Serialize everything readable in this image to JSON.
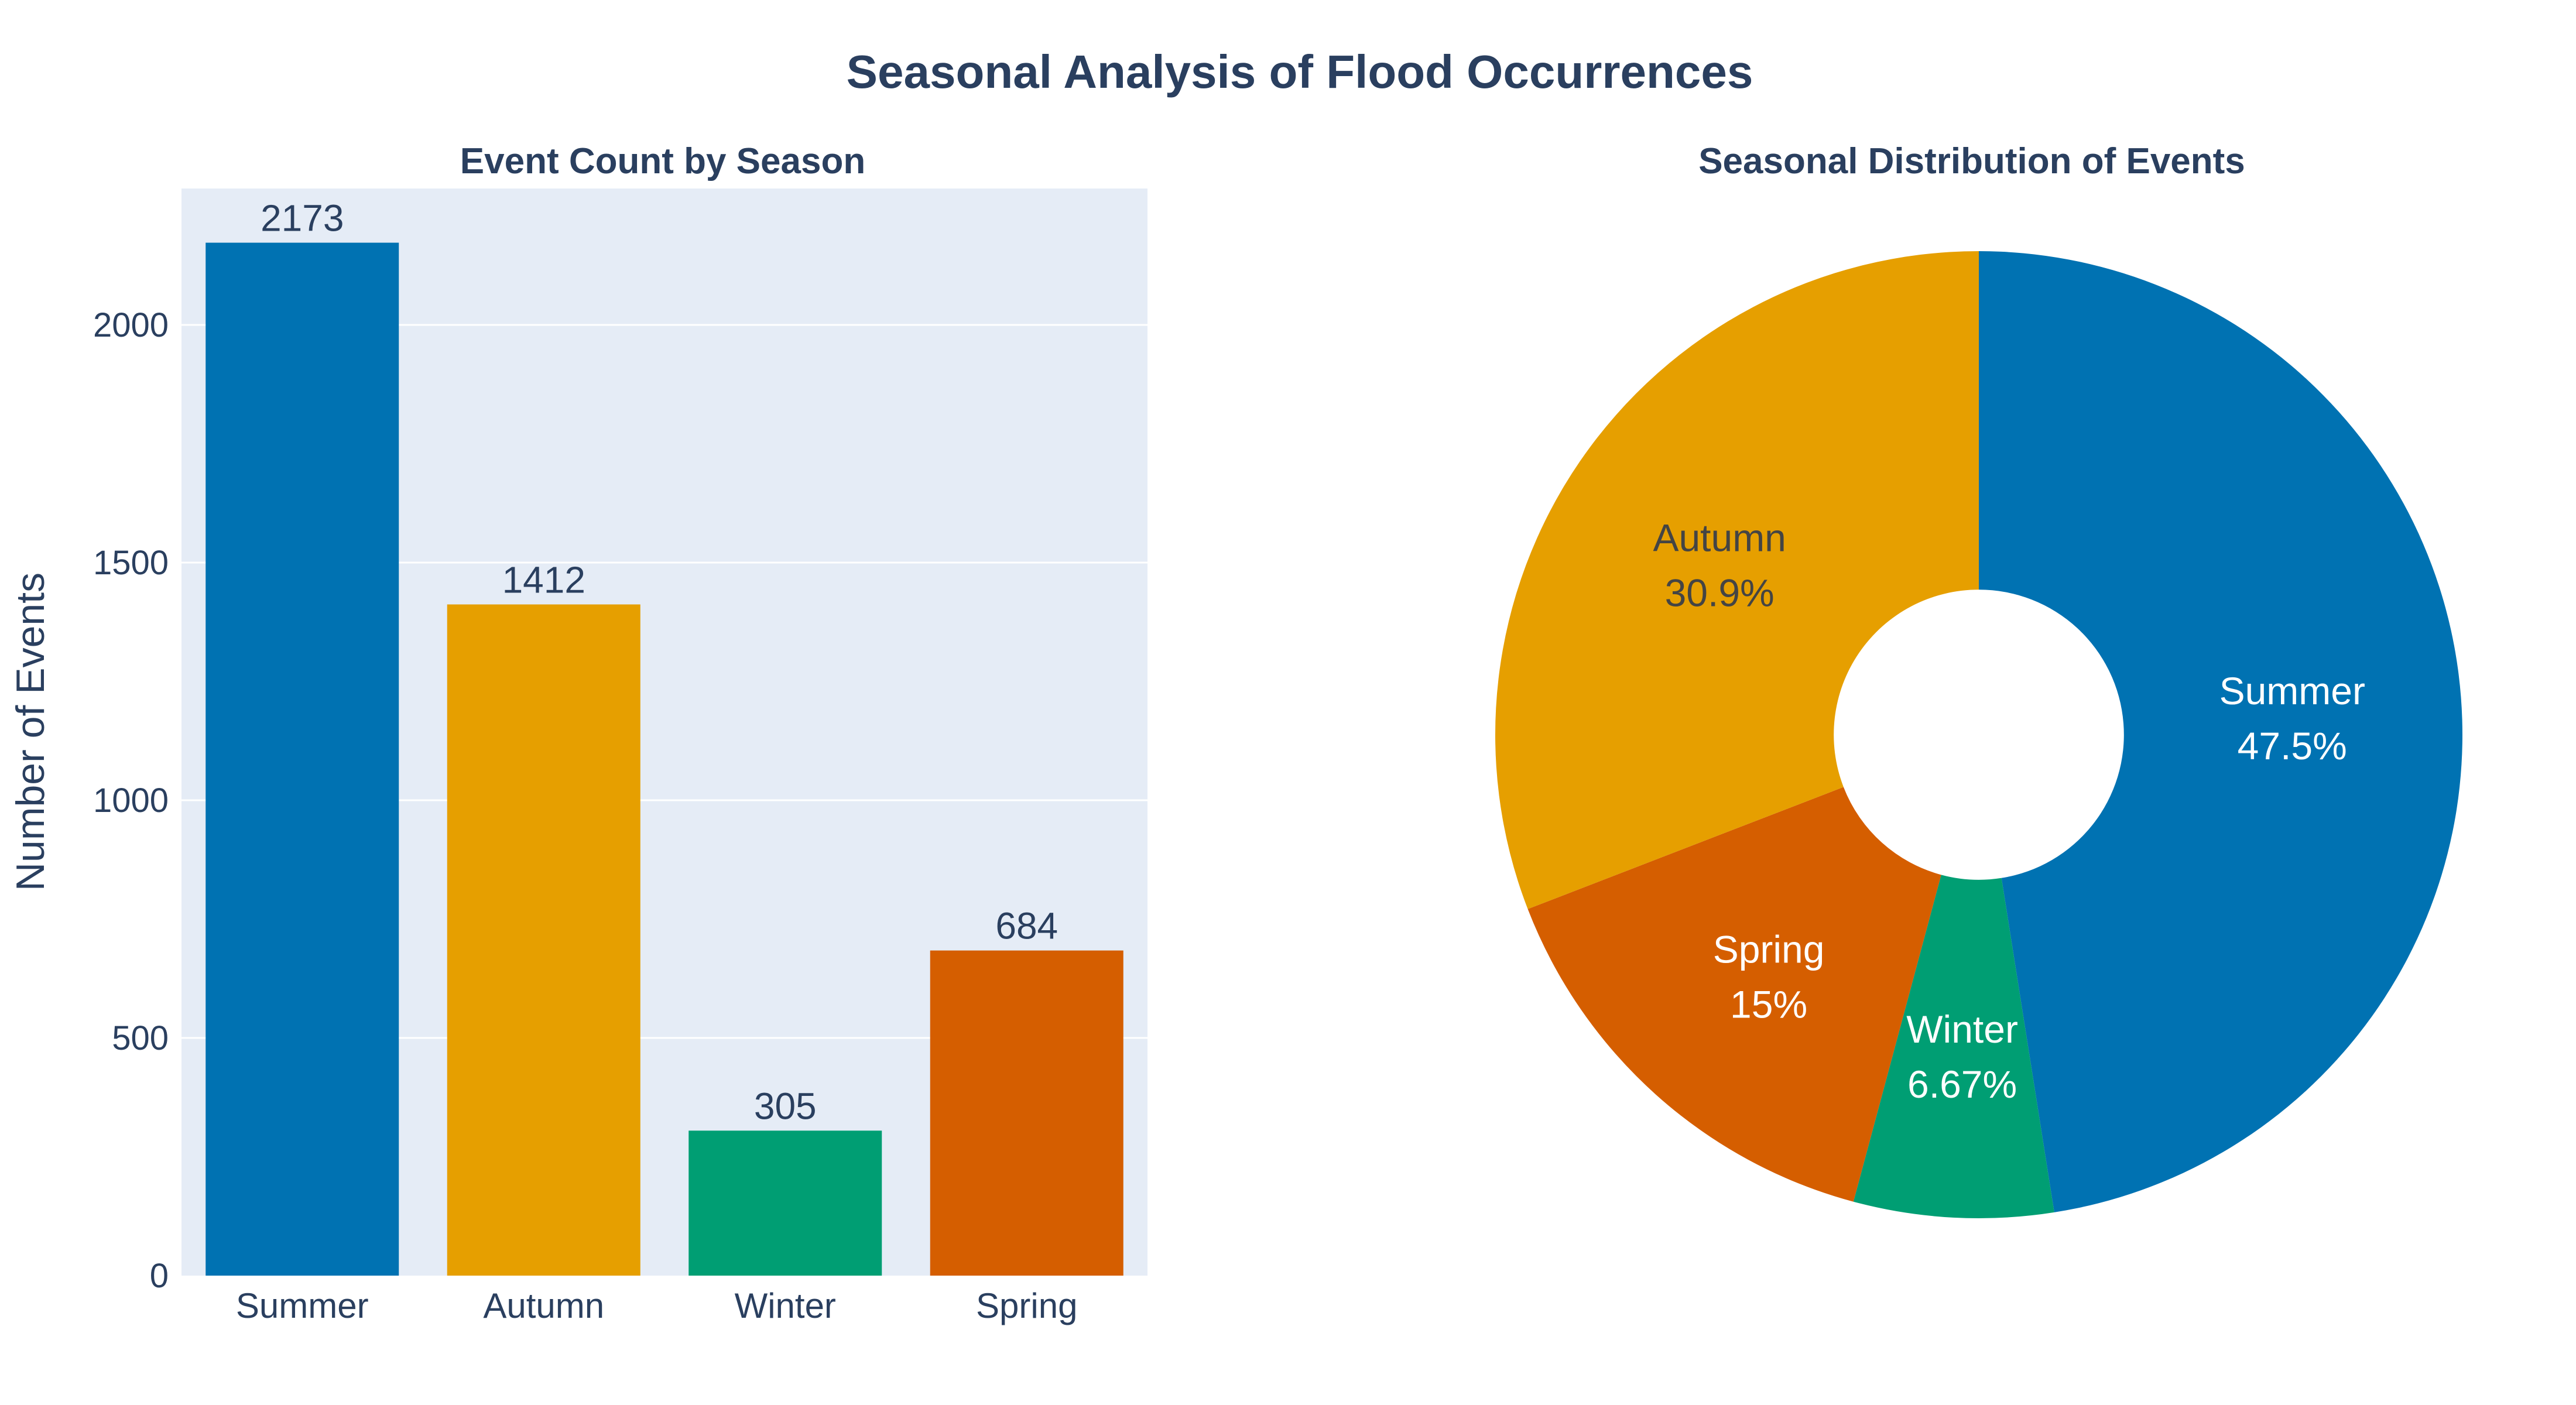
{
  "title": "Seasonal Analysis of Flood Occurrences",
  "colors": {
    "Summer": "#0072b2",
    "Autumn": "#e69f00",
    "Winter": "#009e73",
    "Spring": "#d55e00",
    "plot_bg": "#e5ecf6",
    "text": "#2a3f5f"
  },
  "chart_data": [
    {
      "type": "bar",
      "title": "Event Count by Season",
      "categories": [
        "Summer",
        "Autumn",
        "Winter",
        "Spring"
      ],
      "values": [
        2173,
        1412,
        305,
        684
      ],
      "data_labels": [
        "2173",
        "1412",
        "305",
        "684"
      ],
      "xlabel": "",
      "ylabel": "Number of Events",
      "ylim": [
        0,
        2287
      ],
      "yticks": [
        0,
        500,
        1000,
        1500,
        2000
      ],
      "grid": true
    },
    {
      "type": "pie",
      "title": "Seasonal Distribution of Events",
      "hole": 0.3,
      "direction": "clockwise",
      "slices": [
        {
          "label": "Summer",
          "value": 2173,
          "percent_label": "47.5%"
        },
        {
          "label": "Winter",
          "value": 305,
          "percent_label": "6.67%"
        },
        {
          "label": "Spring",
          "value": 684,
          "percent_label": "15%"
        },
        {
          "label": "Autumn",
          "value": 1412,
          "percent_label": "30.9%"
        }
      ]
    }
  ]
}
